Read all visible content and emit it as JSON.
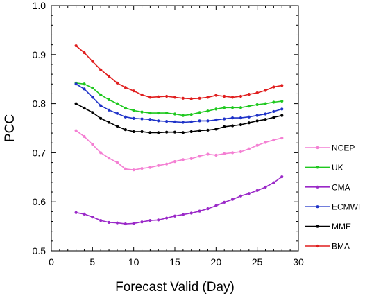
{
  "chart_data": {
    "type": "line",
    "title": "",
    "xlabel": "Forecast Valid (Day)",
    "ylabel": "PCC",
    "xlim": [
      0,
      30
    ],
    "ylim": [
      0.5,
      1.0
    ],
    "xticks": [
      0,
      5,
      10,
      15,
      20,
      25,
      30
    ],
    "yticks": [
      0.5,
      0.6,
      0.7,
      0.8,
      0.9,
      1.0
    ],
    "xtick_labels": [
      "0",
      "5",
      "10",
      "15",
      "20",
      "25",
      "30"
    ],
    "ytick_labels": [
      "0.5",
      "0.6",
      "0.7",
      "0.8",
      "0.9",
      "1.0"
    ],
    "grid": false,
    "legend_position": "right",
    "x": [
      3,
      4,
      5,
      6,
      7,
      8,
      9,
      10,
      11,
      12,
      13,
      14,
      15,
      16,
      17,
      18,
      19,
      20,
      21,
      22,
      23,
      24,
      25,
      26,
      27,
      28
    ],
    "series": [
      {
        "name": "NCEP",
        "color": "#f47fd3",
        "values": [
          0.745,
          0.733,
          0.717,
          0.7,
          0.689,
          0.68,
          0.667,
          0.665,
          0.668,
          0.67,
          0.674,
          0.677,
          0.682,
          0.686,
          0.688,
          0.693,
          0.697,
          0.695,
          0.698,
          0.7,
          0.702,
          0.708,
          0.715,
          0.721,
          0.726,
          0.73
        ]
      },
      {
        "name": "UK",
        "color": "#1ec81e",
        "values": [
          0.842,
          0.84,
          0.832,
          0.818,
          0.808,
          0.8,
          0.791,
          0.786,
          0.783,
          0.781,
          0.781,
          0.781,
          0.779,
          0.776,
          0.778,
          0.782,
          0.785,
          0.789,
          0.792,
          0.792,
          0.792,
          0.795,
          0.798,
          0.8,
          0.803,
          0.805
        ]
      },
      {
        "name": "CMA",
        "color": "#9a28c8",
        "values": [
          0.578,
          0.575,
          0.569,
          0.562,
          0.558,
          0.557,
          0.555,
          0.556,
          0.559,
          0.562,
          0.563,
          0.567,
          0.571,
          0.574,
          0.577,
          0.581,
          0.586,
          0.592,
          0.599,
          0.605,
          0.612,
          0.617,
          0.623,
          0.63,
          0.639,
          0.651
        ]
      },
      {
        "name": "ECMWF",
        "color": "#1e32c8",
        "values": [
          0.84,
          0.83,
          0.813,
          0.796,
          0.787,
          0.78,
          0.773,
          0.77,
          0.769,
          0.768,
          0.765,
          0.764,
          0.763,
          0.762,
          0.763,
          0.765,
          0.765,
          0.767,
          0.769,
          0.771,
          0.771,
          0.773,
          0.776,
          0.779,
          0.784,
          0.789
        ]
      },
      {
        "name": "MME",
        "color": "#000000",
        "values": [
          0.8,
          0.791,
          0.782,
          0.77,
          0.762,
          0.754,
          0.747,
          0.743,
          0.743,
          0.741,
          0.741,
          0.742,
          0.742,
          0.741,
          0.743,
          0.745,
          0.746,
          0.748,
          0.753,
          0.755,
          0.757,
          0.761,
          0.765,
          0.768,
          0.772,
          0.776
        ]
      },
      {
        "name": "BMA",
        "color": "#e01e1e",
        "values": [
          0.918,
          0.904,
          0.886,
          0.869,
          0.856,
          0.842,
          0.833,
          0.826,
          0.818,
          0.813,
          0.814,
          0.815,
          0.813,
          0.811,
          0.81,
          0.811,
          0.813,
          0.817,
          0.815,
          0.813,
          0.815,
          0.819,
          0.822,
          0.827,
          0.834,
          0.837
        ]
      }
    ]
  }
}
